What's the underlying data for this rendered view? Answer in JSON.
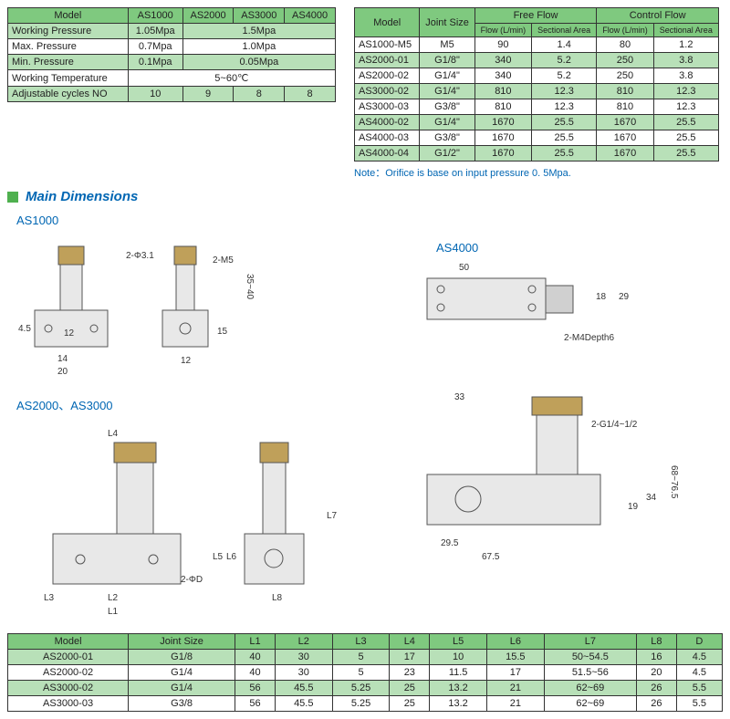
{
  "colors": {
    "header_green": "#7fc97f",
    "row_green": "#b8e0b8",
    "title_blue": "#0066b3",
    "accent_green": "#4fb04f",
    "border": "#333333"
  },
  "spec_table": {
    "headers": [
      "Model",
      "AS1000",
      "AS2000",
      "AS3000",
      "AS4000"
    ],
    "rows": [
      {
        "label": "Working Pressure",
        "cells": [
          {
            "v": "1.05Mpa",
            "span": 1
          },
          {
            "v": "1.5Mpa",
            "span": 3
          }
        ],
        "alt": true
      },
      {
        "label": "Max. Pressure",
        "cells": [
          {
            "v": "0.7Mpa",
            "span": 1
          },
          {
            "v": "1.0Mpa",
            "span": 3
          }
        ],
        "alt": false
      },
      {
        "label": "Min. Pressure",
        "cells": [
          {
            "v": "0.1Mpa",
            "span": 1
          },
          {
            "v": "0.05Mpa",
            "span": 3
          }
        ],
        "alt": true
      },
      {
        "label": "Working Temperature",
        "cells": [
          {
            "v": "5~60℃",
            "span": 4
          }
        ],
        "alt": false
      },
      {
        "label": "Adjustable cycles NO",
        "cells": [
          {
            "v": "10",
            "span": 1
          },
          {
            "v": "9",
            "span": 1
          },
          {
            "v": "8",
            "span": 1
          },
          {
            "v": "8",
            "span": 1
          }
        ],
        "alt": true
      }
    ]
  },
  "flow_table": {
    "top_headers": {
      "model": "Model",
      "joint": "Joint Size",
      "free": "Free Flow",
      "control": "Control Flow"
    },
    "sub_headers": [
      "Flow (L/min)",
      "Sectional Area",
      "Flow (L/min)",
      "Sectional Area"
    ],
    "rows": [
      {
        "cells": [
          "AS1000-M5",
          "M5",
          "90",
          "1.4",
          "80",
          "1.2"
        ],
        "alt": false
      },
      {
        "cells": [
          "AS2000-01",
          "G1/8\"",
          "340",
          "5.2",
          "250",
          "3.8"
        ],
        "alt": true
      },
      {
        "cells": [
          "AS2000-02",
          "G1/4\"",
          "340",
          "5.2",
          "250",
          "3.8"
        ],
        "alt": false
      },
      {
        "cells": [
          "AS3000-02",
          "G1/4\"",
          "810",
          "12.3",
          "810",
          "12.3"
        ],
        "alt": true
      },
      {
        "cells": [
          "AS3000-03",
          "G3/8\"",
          "810",
          "12.3",
          "810",
          "12.3"
        ],
        "alt": false
      },
      {
        "cells": [
          "AS4000-02",
          "G1/4\"",
          "1670",
          "25.5",
          "1670",
          "25.5"
        ],
        "alt": true
      },
      {
        "cells": [
          "AS4000-03",
          "G3/8\"",
          "1670",
          "25.5",
          "1670",
          "25.5"
        ],
        "alt": false
      },
      {
        "cells": [
          "AS4000-04",
          "G1/2\"",
          "1670",
          "25.5",
          "1670",
          "25.5"
        ],
        "alt": true
      }
    ],
    "note": "Note：Orifice is base on input pressure 0. 5Mpa."
  },
  "section_title": "Main Dimensions",
  "labels": {
    "as1000": "AS1000",
    "as2000_3000": "AS2000、AS3000",
    "as4000": "AS4000"
  },
  "diagram_dims": {
    "as1000": [
      "2-Φ3.1",
      "2-M5",
      "35~40",
      "4.5",
      "12",
      "14",
      "20",
      "15",
      "12"
    ],
    "as4000": [
      "50",
      "18",
      "29",
      "2-M4Depth6",
      "33",
      "2-G1/4~1/2",
      "68~76.5",
      "19",
      "34",
      "29.5",
      "67.5"
    ],
    "as2000_3000": [
      "L4",
      "L7",
      "L5",
      "L6",
      "L3",
      "L2",
      "L1",
      "2-ΦD",
      "L8"
    ]
  },
  "dim_table": {
    "headers": [
      "Model",
      "Joint Size",
      "L1",
      "L2",
      "L3",
      "L4",
      "L5",
      "L6",
      "L7",
      "L8",
      "D"
    ],
    "rows": [
      {
        "cells": [
          "AS2000-01",
          "G1/8",
          "40",
          "30",
          "5",
          "17",
          "10",
          "15.5",
          "50~54.5",
          "16",
          "4.5"
        ],
        "alt": true
      },
      {
        "cells": [
          "AS2000-02",
          "G1/4",
          "40",
          "30",
          "5",
          "23",
          "11.5",
          "17",
          "51.5~56",
          "20",
          "4.5"
        ],
        "alt": false
      },
      {
        "cells": [
          "AS3000-02",
          "G1/4",
          "56",
          "45.5",
          "5.25",
          "25",
          "13.2",
          "21",
          "62~69",
          "26",
          "5.5"
        ],
        "alt": true
      },
      {
        "cells": [
          "AS3000-03",
          "G3/8",
          "56",
          "45.5",
          "5.25",
          "25",
          "13.2",
          "21",
          "62~69",
          "26",
          "5.5"
        ],
        "alt": false
      }
    ]
  }
}
